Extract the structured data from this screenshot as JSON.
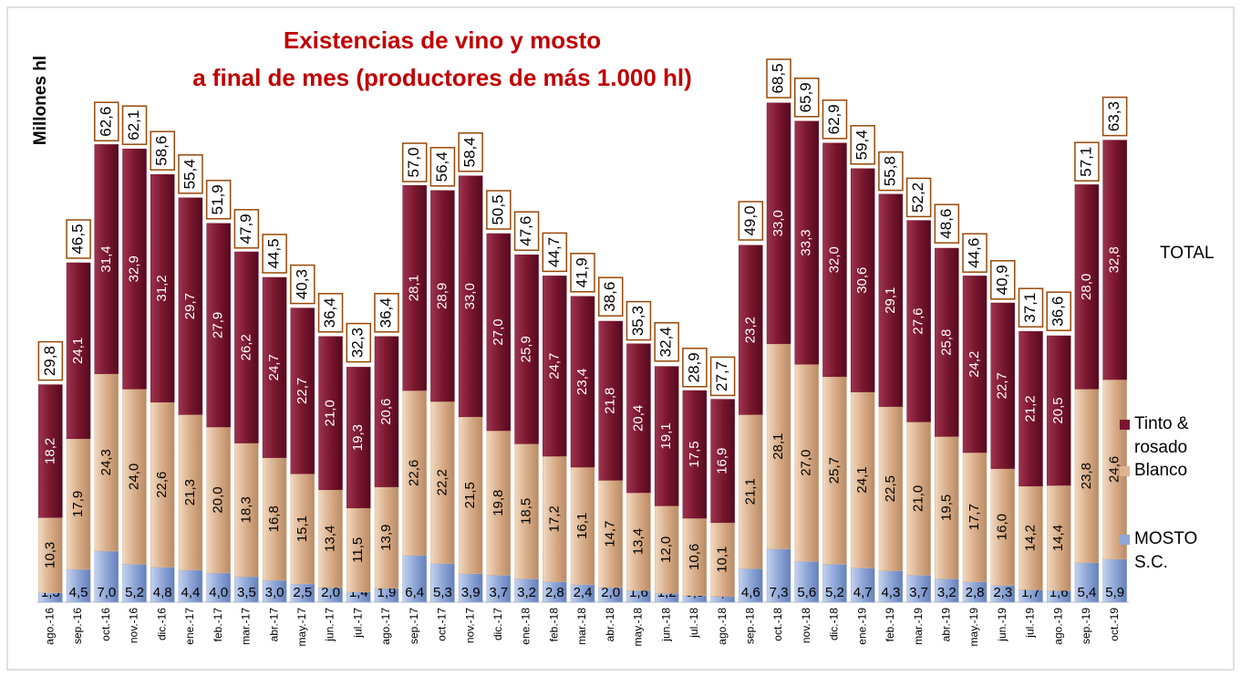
{
  "chart_data": {
    "type": "stacked_bar",
    "title": [
      "Existencias de vino y mosto",
      "a final de mes (productores de más 1.000 hl)"
    ],
    "ylabel": "Millones hl",
    "ylim": [
      0,
      80
    ],
    "categories": [
      "ago.-16",
      "sep.-16",
      "oct.-16",
      "nov.-16",
      "dic.-16",
      "ene.-17",
      "feb.-17",
      "mar.-17",
      "abr.-17",
      "may.-17",
      "jun.-17",
      "jul.-17",
      "ago.-17",
      "sep.-17",
      "oct.-17",
      "nov.-17",
      "dic.-17",
      "ene.-18",
      "feb.-18",
      "mar.-18",
      "abr.-18",
      "may.-18",
      "jun.-18",
      "jul.-18",
      "ago.-18",
      "sep.-18",
      "oct.-18",
      "nov.-18",
      "dic.-18",
      "ene.-19",
      "feb.-19",
      "mar.-19",
      "abr.-19",
      "may.-19",
      "jun.-19",
      "jul.-19",
      "ago.-19",
      "sep.-19",
      "oct.-19"
    ],
    "series": [
      {
        "name": "MOSTO S.C.",
        "color": "#8fa6d6",
        "values": [
          1.3,
          4.5,
          7.0,
          5.2,
          4.8,
          4.4,
          4.0,
          3.5,
          3.0,
          2.5,
          2.0,
          1.4,
          1.9,
          6.4,
          5.3,
          3.9,
          3.7,
          3.2,
          2.8,
          2.4,
          2.0,
          1.6,
          1.2,
          0.9,
          0.8,
          4.6,
          7.3,
          5.6,
          5.2,
          4.7,
          4.3,
          3.7,
          3.2,
          2.8,
          2.3,
          1.7,
          1.6,
          5.4,
          5.9
        ],
        "value_labels": [
          "1,3",
          "4,5",
          "7,0",
          "5,2",
          "4,8",
          "4,4",
          "4,0",
          "3,5",
          "3,0",
          "2,5",
          "2,0",
          "1,4",
          "1,9",
          "6,4",
          "5,3",
          "3,9",
          "3,7",
          "3,2",
          "2,8",
          "2,4",
          "2,0",
          "1,6",
          "1,2",
          "0,9",
          "0,8",
          "4,6",
          "7,3",
          "5,6",
          "5,2",
          "4,7",
          "4,3",
          "3,7",
          "3,2",
          "2,8",
          "2,3",
          "1,7",
          "1,6",
          "5,4",
          "5,9"
        ]
      },
      {
        "name": "Blanco",
        "color": "#dcb491",
        "values": [
          10.3,
          17.9,
          24.3,
          24.0,
          22.6,
          21.3,
          20.0,
          18.3,
          16.8,
          15.1,
          13.4,
          11.5,
          13.9,
          22.6,
          22.2,
          21.5,
          19.8,
          18.5,
          17.2,
          16.1,
          14.7,
          13.4,
          12.0,
          10.6,
          10.1,
          21.1,
          28.1,
          27.0,
          25.7,
          24.1,
          22.5,
          21.0,
          19.5,
          17.7,
          16.0,
          14.2,
          14.4,
          23.8,
          24.6
        ],
        "value_labels": [
          "10,3",
          "17,9",
          "24,3",
          "24,0",
          "22,6",
          "21,3",
          "20,0",
          "18,3",
          "16,8",
          "15,1",
          "13,4",
          "11,5",
          "13,9",
          "22,6",
          "22,2",
          "21,5",
          "19,8",
          "18,5",
          "17,2",
          "16,1",
          "14,7",
          "13,4",
          "12,0",
          "10,6",
          "10,1",
          "21,1",
          "28,1",
          "27,0",
          "25,7",
          "24,1",
          "22,5",
          "21,0",
          "19,5",
          "17,7",
          "16,0",
          "14,2",
          "14,4",
          "23,8",
          "24,6"
        ]
      },
      {
        "name": "Tinto & rosado",
        "color": "#7a1730",
        "values": [
          18.2,
          24.1,
          31.4,
          32.9,
          31.2,
          29.7,
          27.9,
          26.2,
          24.7,
          22.7,
          21.0,
          19.3,
          20.6,
          28.1,
          28.9,
          33.0,
          27.0,
          25.9,
          24.7,
          23.4,
          21.8,
          20.4,
          19.1,
          17.5,
          16.9,
          23.2,
          33.0,
          33.3,
          32.0,
          30.6,
          29.1,
          27.6,
          25.8,
          24.2,
          22.7,
          21.2,
          20.5,
          28.0,
          32.8
        ],
        "value_labels": [
          "18,2",
          "24,1",
          "31,4",
          "32,9",
          "31,2",
          "29,7",
          "27,9",
          "26,2",
          "24,7",
          "22,7",
          "21,0",
          "19,3",
          "20,6",
          "28,1",
          "28,9",
          "33,0",
          "27,0",
          "25,9",
          "24,7",
          "23,4",
          "21,8",
          "20,4",
          "19,1",
          "17,5",
          "16,9",
          "23,2",
          "33,0",
          "33,3",
          "32,0",
          "30,6",
          "29,1",
          "27,6",
          "25,8",
          "24,2",
          "22,7",
          "21,2",
          "20,5",
          "28,0",
          "32,8"
        ]
      }
    ],
    "total": {
      "name": "TOTAL",
      "values": [
        29.8,
        46.5,
        62.6,
        62.1,
        58.6,
        55.4,
        51.9,
        47.9,
        44.5,
        40.3,
        36.4,
        32.3,
        36.4,
        57.0,
        56.4,
        58.4,
        50.5,
        47.6,
        44.7,
        41.9,
        38.6,
        35.3,
        32.4,
        28.9,
        27.7,
        49.0,
        68.5,
        65.9,
        62.9,
        59.4,
        55.8,
        52.2,
        48.6,
        44.6,
        40.9,
        37.1,
        36.6,
        57.1,
        63.3
      ],
      "value_labels": [
        "29,8",
        "46,5",
        "62,6",
        "62,1",
        "58,6",
        "55,4",
        "51,9",
        "47,9",
        "44,5",
        "40,3",
        "36,4",
        "32,3",
        "36,4",
        "57,0",
        "56,4",
        "58,4",
        "50,5",
        "47,6",
        "44,7",
        "41,9",
        "38,6",
        "35,3",
        "32,4",
        "28,9",
        "27,7",
        "49,0",
        "68,5",
        "65,9",
        "62,9",
        "59,4",
        "55,8",
        "52,2",
        "48,6",
        "44,6",
        "40,9",
        "37,1",
        "36,6",
        "57,1",
        "63,3"
      ]
    }
  }
}
